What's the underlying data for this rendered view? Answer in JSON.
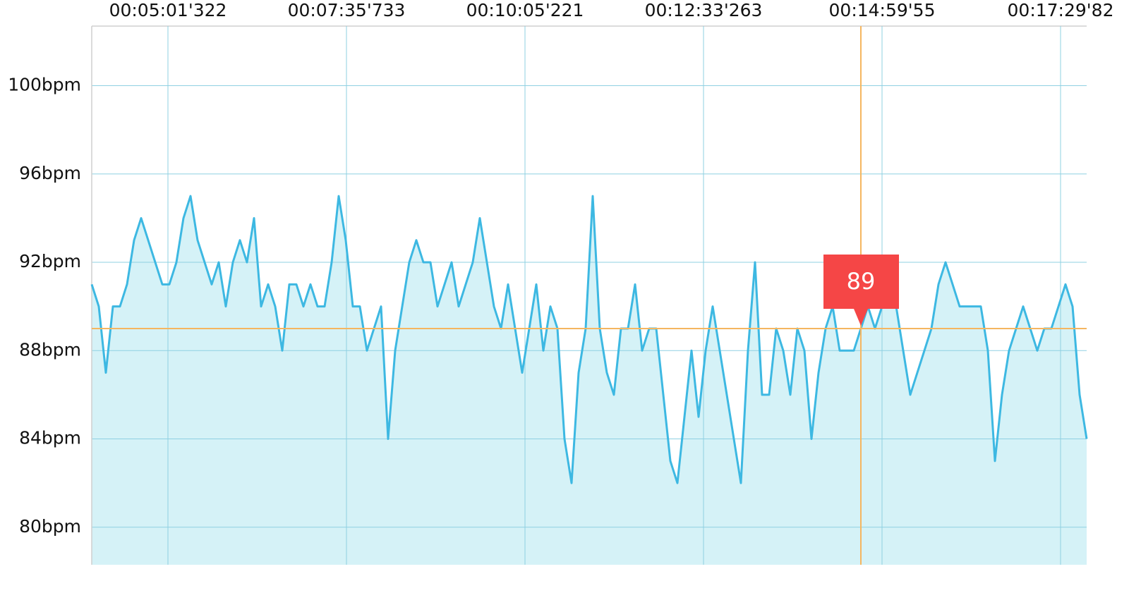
{
  "chart_data": {
    "type": "area",
    "values": [
      91,
      90,
      87,
      90,
      90,
      91,
      93,
      94,
      93,
      92,
      91,
      91,
      92,
      94,
      95,
      93,
      92,
      91,
      92,
      90,
      92,
      93,
      92,
      94,
      90,
      91,
      90,
      88,
      91,
      91,
      90,
      91,
      90,
      90,
      92,
      95,
      93,
      90,
      90,
      88,
      89,
      90,
      84,
      88,
      90,
      92,
      93,
      92,
      92,
      90,
      91,
      92,
      90,
      91,
      92,
      94,
      92,
      90,
      89,
      91,
      89,
      87,
      89,
      91,
      88,
      90,
      89,
      84,
      82,
      87,
      89,
      95,
      89,
      87,
      86,
      89,
      89,
      91,
      88,
      89,
      89,
      86,
      83,
      82,
      85,
      88,
      85,
      88,
      90,
      88,
      86,
      84,
      82,
      88,
      92,
      86,
      86,
      89,
      88,
      86,
      89,
      88,
      84,
      87,
      89,
      90,
      88,
      88,
      88,
      89,
      90,
      89,
      90,
      90,
      90,
      88,
      86,
      87,
      88,
      89,
      91,
      92,
      91,
      90,
      90,
      90,
      90,
      88,
      83,
      86,
      88,
      89,
      90,
      89,
      88,
      89,
      89,
      90,
      91,
      90,
      86,
      84
    ],
    "color": "#3db8e2",
    "fill": "#d5f2f7",
    "xlim": [
      0,
      141
    ],
    "xticks": [
      {
        "value": 10.8,
        "label": "00:05:01'322"
      },
      {
        "value": 36.1,
        "label": "00:07:35'733"
      },
      {
        "value": 61.4,
        "label": "00:10:05'221"
      },
      {
        "value": 86.7,
        "label": "00:12:33'263"
      },
      {
        "value": 112,
        "label": "00:14:59'55"
      },
      {
        "value": 137.3,
        "label": "00:17:29'82"
      }
    ],
    "ylim": [
      78.3,
      102.7
    ],
    "yticks": [
      {
        "value": 80,
        "label": "80bpm"
      },
      {
        "value": 84,
        "label": "84bpm"
      },
      {
        "value": 88,
        "label": "88bpm"
      },
      {
        "value": 92,
        "label": "92bpm"
      },
      {
        "value": 96,
        "label": "96bpm"
      },
      {
        "value": 100,
        "label": "100bpm"
      }
    ],
    "grid": true,
    "selected": 109,
    "crosshair_color": "#f5b660",
    "tooltip_color": "#f54646"
  }
}
